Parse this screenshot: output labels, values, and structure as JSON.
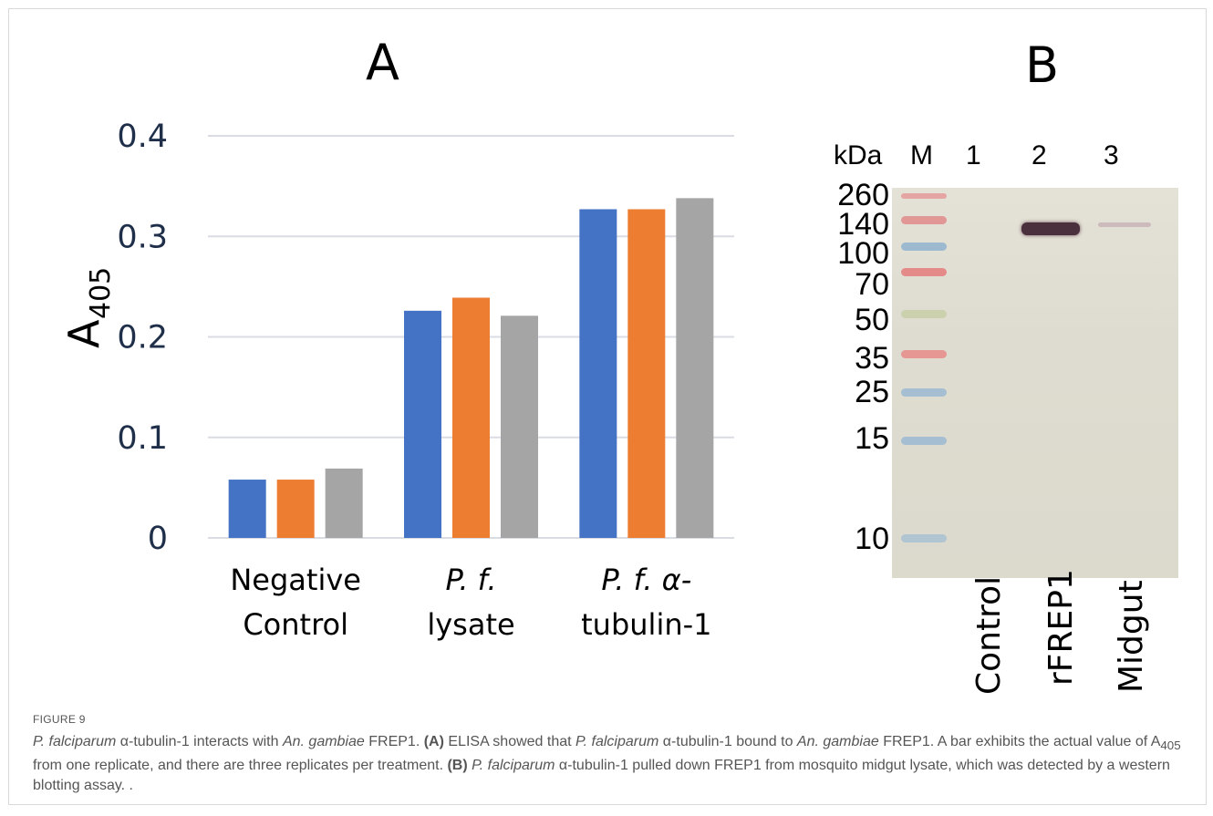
{
  "panels": {
    "a_letter": "A",
    "b_letter": "B"
  },
  "chart_data": {
    "type": "bar",
    "ylabel_main": "A",
    "ylabel_sub": "405",
    "ylim": [
      0,
      0.4
    ],
    "yticks": [
      "0",
      "0.1",
      "0.2",
      "0.3",
      "0.4"
    ],
    "grid": true,
    "categories": [
      {
        "line1": "Negative",
        "line2": "Control",
        "italic": false
      },
      {
        "line1": "P. f.",
        "line2": "lysate",
        "italic": true
      },
      {
        "line1": "P. f. α-",
        "line2": "tubulin-1",
        "italic": true
      }
    ],
    "series": [
      {
        "values": [
          0.058,
          0.226,
          0.327
        ],
        "color": "#4472c4"
      },
      {
        "values": [
          0.058,
          0.239,
          0.327
        ],
        "color": "#ed7d31"
      },
      {
        "values": [
          0.069,
          0.221,
          0.338
        ],
        "color": "#a5a5a5"
      }
    ]
  },
  "blot": {
    "kda_label": "kDa",
    "marker_label": "M",
    "lane_numbers": [
      "1",
      "2",
      "3"
    ],
    "mw_markers": [
      "260",
      "140",
      "100",
      "70",
      "50",
      "35",
      "25",
      "15",
      "10"
    ],
    "lane_names": [
      "Control",
      "rFREP1",
      "Midgut"
    ]
  },
  "figure": {
    "label": "FIGURE 9",
    "caption": {
      "s1": "P. falciparum",
      "s2": " α-tubulin-1 interacts with ",
      "s3": "An. gambiae",
      "s4": " FREP1. ",
      "s5": "(A)",
      "s6": " ELISA showed that ",
      "s7": "P. falciparum",
      "s8": " α-tubulin-1 bound to ",
      "s9": "An. gambiae",
      "s10": " FREP1. A bar exhibits the actual value of A",
      "s11": "405",
      "s12": " from one replicate, and there are three replicates per treatment. ",
      "s13": "(B)",
      "s14": " ",
      "s15": "P. falciparum",
      "s16": " α-tubulin-1 pulled down FREP1 from mosquito midgut lysate, which was detected by a western blotting assay. ."
    }
  }
}
